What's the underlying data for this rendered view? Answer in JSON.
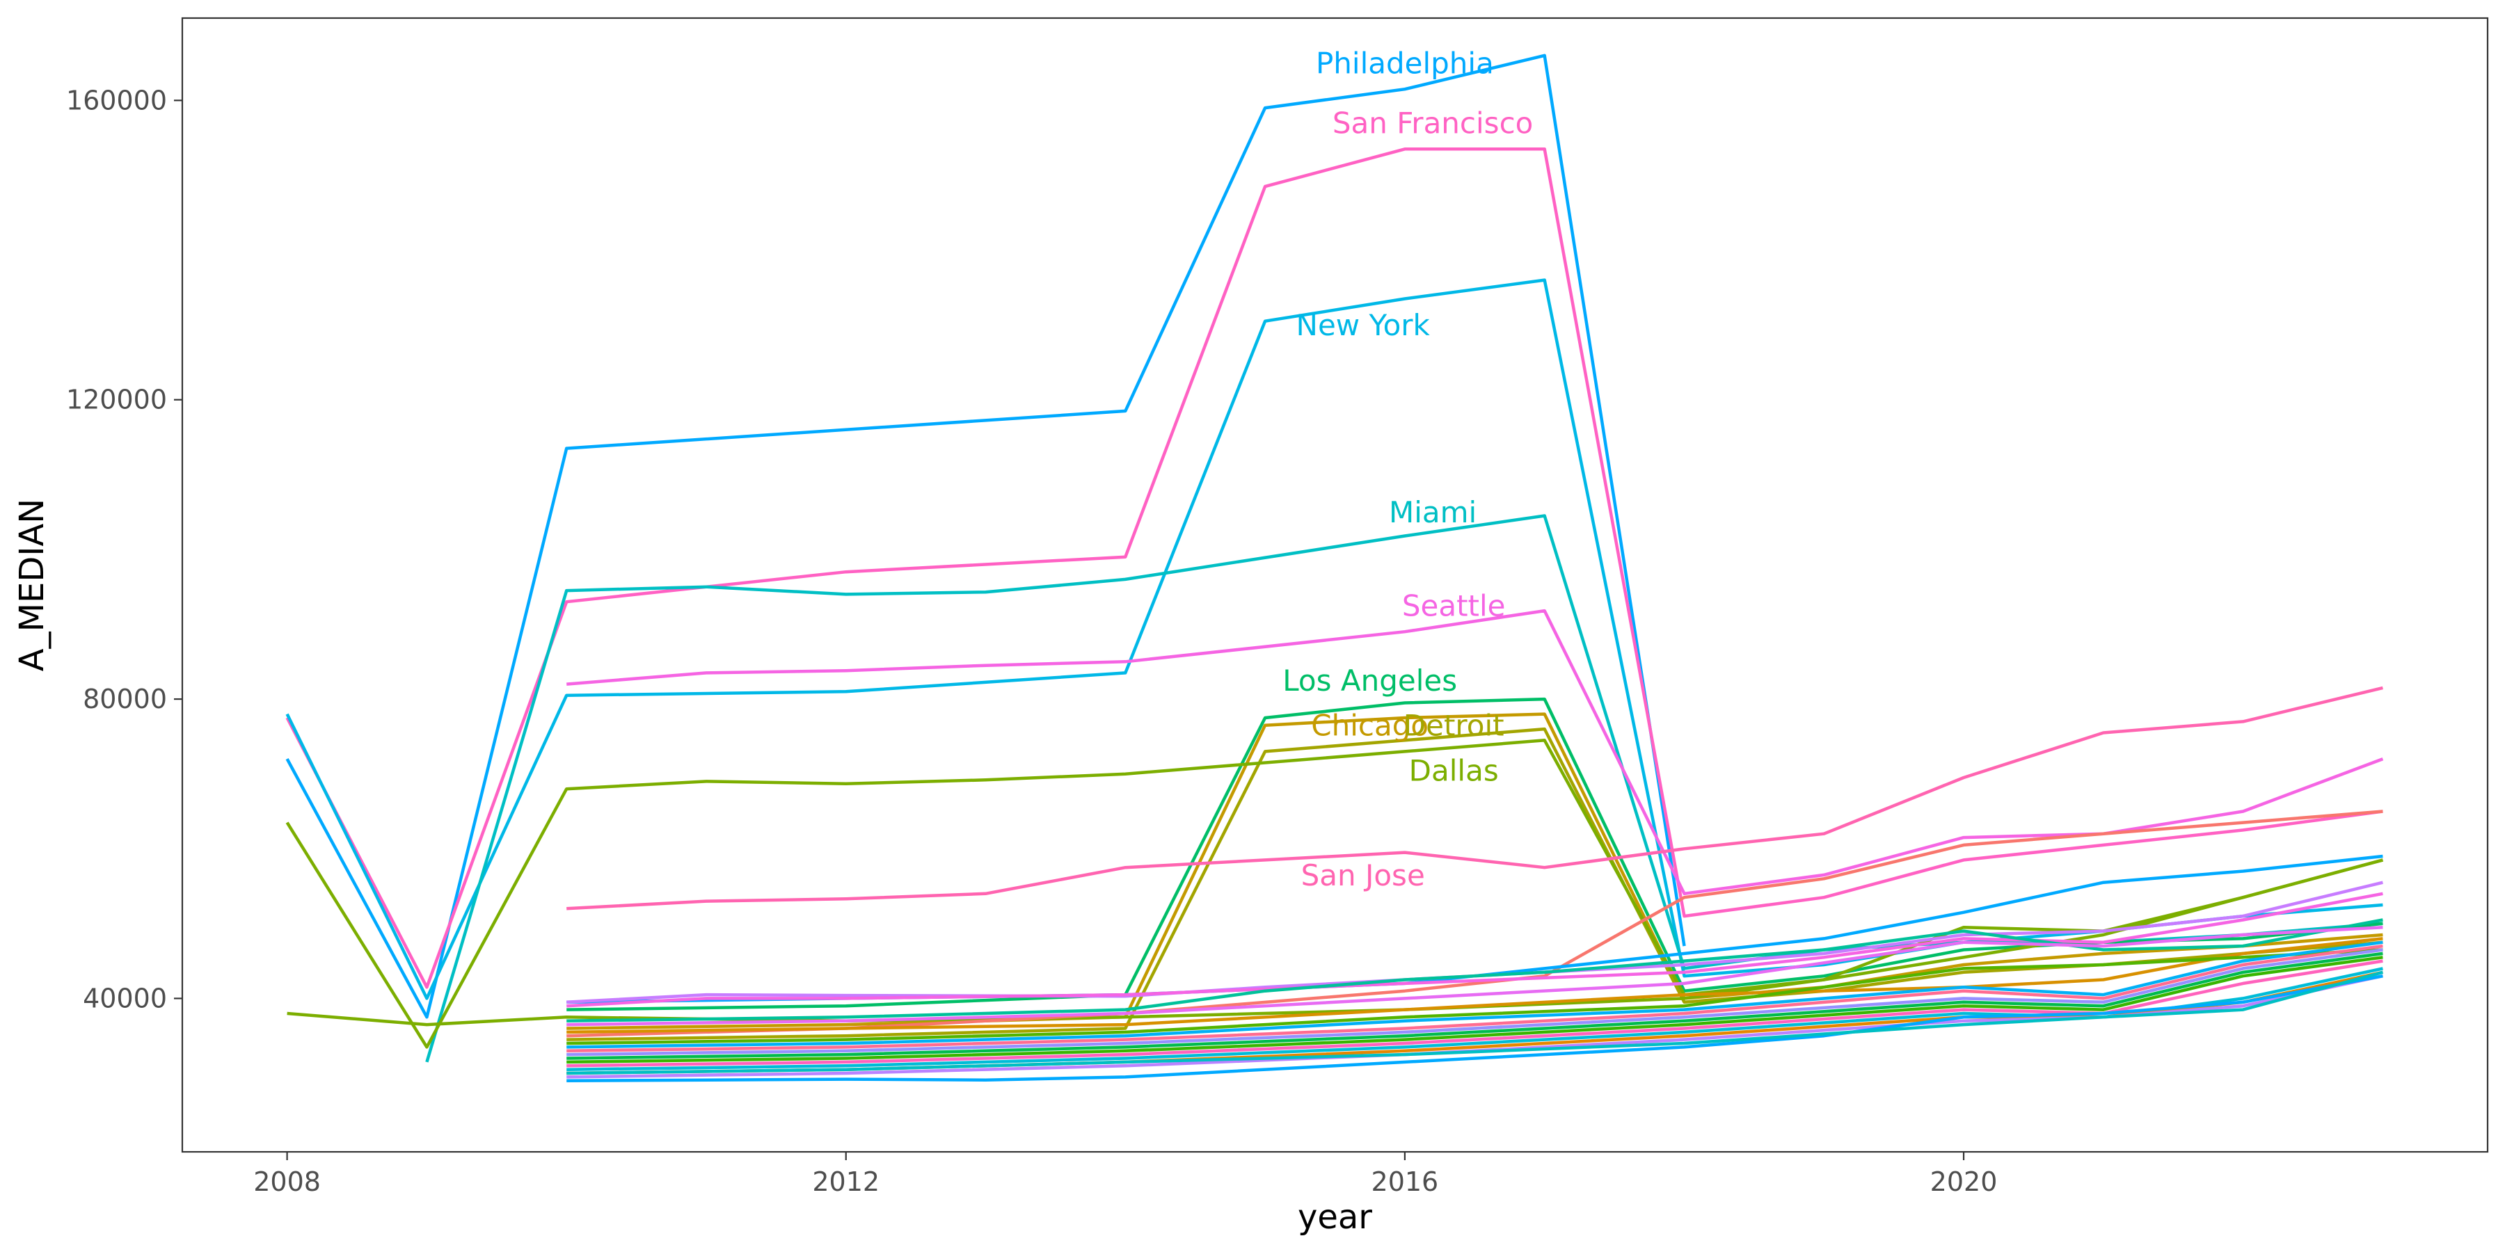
{
  "chart_data": {
    "type": "line",
    "xlabel": "year",
    "ylabel": "A_MEDIAN",
    "xlim": [
      2007.25,
      2023.75
    ],
    "ylim": [
      19500,
      171000
    ],
    "x_ticks": [
      2008,
      2012,
      2016,
      2020
    ],
    "y_ticks": [
      40000,
      80000,
      120000,
      160000
    ],
    "y_tick_labels": [
      "40000",
      "80000",
      "120000",
      "160000"
    ],
    "grid": false,
    "legend": "none",
    "series": [
      {
        "name": "Philadelphia",
        "color": "#00A9FF",
        "label_x": 2016.0,
        "label_y": 165000,
        "x": [
          2008,
          2009,
          2010,
          2014,
          2015,
          2016,
          2017,
          2018
        ],
        "y": [
          72000,
          37500,
          113500,
          118500,
          159000,
          161500,
          166000,
          47000
        ]
      },
      {
        "name": "San Francisco",
        "color": "#FF61C3",
        "label_x": 2016.2,
        "label_y": 157000,
        "x": [
          2008,
          2009,
          2010,
          2012,
          2014,
          2015,
          2016,
          2017,
          2018,
          2019,
          2020,
          2021,
          2022,
          2023
        ],
        "y": [
          77500,
          41500,
          93000,
          97000,
          99000,
          148500,
          153500,
          153500,
          51000,
          53500,
          58500,
          60500,
          62500,
          65000
        ]
      },
      {
        "name": "New York",
        "color": "#00B8E7",
        "label_x": 2015.7,
        "label_y": 130000,
        "x": [
          2008,
          2009,
          2010,
          2012,
          2014,
          2015,
          2016,
          2017,
          2018,
          2019,
          2020,
          2021,
          2022,
          2023
        ],
        "y": [
          78000,
          40000,
          80500,
          81000,
          83500,
          130500,
          133500,
          136000,
          43000,
          44500,
          47500,
          49000,
          51000,
          52500
        ]
      },
      {
        "name": "Miami",
        "color": "#00BFC4",
        "label_x": 2016.2,
        "label_y": 105000,
        "x": [
          2009,
          2010,
          2011,
          2012,
          2013,
          2014,
          2016,
          2017,
          2018,
          2019,
          2020,
          2021,
          2022,
          2023
        ],
        "y": [
          31500,
          94500,
          95000,
          94000,
          94300,
          96000,
          101800,
          104500,
          44000,
          46500,
          47500,
          47500,
          48500,
          50000
        ]
      },
      {
        "name": "Seattle",
        "color": "#F564E3",
        "label_x": 2016.35,
        "label_y": 92500,
        "x": [
          2010,
          2011,
          2012,
          2013,
          2014,
          2016,
          2017,
          2018,
          2019,
          2020,
          2021,
          2022,
          2023
        ],
        "y": [
          82000,
          83500,
          83800,
          84500,
          85000,
          89000,
          91800,
          54000,
          56500,
          61500,
          62000,
          65000,
          72000
        ]
      },
      {
        "name": "Los Angeles",
        "color": "#00BE67",
        "label_x": 2015.75,
        "label_y": 82500,
        "x": [
          2010,
          2012,
          2014,
          2015,
          2016,
          2017,
          2018,
          2019,
          2020,
          2021,
          2022,
          2023
        ],
        "y": [
          38500,
          39000,
          40500,
          77500,
          79500,
          80000,
          41000,
          43000,
          46500,
          47500,
          48000,
          50000
        ]
      },
      {
        "name": "Chicago",
        "color": "#C49A00",
        "label_x": 2015.75,
        "label_y": 76500,
        "x": [
          2010,
          2012,
          2014,
          2015,
          2016,
          2017,
          2018,
          2019,
          2020,
          2021,
          2022,
          2023
        ],
        "y": [
          36000,
          36500,
          37500,
          76500,
          77500,
          78000,
          40000,
          41500,
          44500,
          46000,
          47000,
          48500
        ]
      },
      {
        "name": "Detroit",
        "color": "#A3A500",
        "label_x": 2016.35,
        "label_y": 76500,
        "x": [
          2010,
          2012,
          2014,
          2015,
          2016,
          2017,
          2018,
          2019,
          2020,
          2021,
          2022,
          2023
        ],
        "y": [
          34500,
          35000,
          36000,
          73000,
          74500,
          76000,
          39500,
          41000,
          43500,
          44500,
          46000,
          47500
        ]
      },
      {
        "name": "Dallas",
        "color": "#7CAE00",
        "label_x": 2016.35,
        "label_y": 70500,
        "x": [
          2008,
          2009,
          2010,
          2011,
          2012,
          2013,
          2014,
          2016,
          2017,
          2018,
          2019,
          2020,
          2021,
          2022,
          2023
        ],
        "y": [
          63500,
          33500,
          68000,
          69000,
          68700,
          69200,
          70000,
          73000,
          74500,
          40500,
          42500,
          45500,
          48500,
          53500,
          58500
        ]
      },
      {
        "name": "San Jose",
        "color": "#FF64B0",
        "label_x": 2015.7,
        "label_y": 56500,
        "x": [
          2010,
          2011,
          2012,
          2013,
          2014,
          2015,
          2016,
          2017,
          2018,
          2019,
          2020,
          2021,
          2022,
          2023
        ],
        "y": [
          52000,
          53000,
          53300,
          54000,
          57500,
          58500,
          59500,
          57500,
          60000,
          62000,
          69500,
          75500,
          77000,
          81500
        ]
      },
      {
        "color": "#7CAE00",
        "x": [
          2008,
          2009,
          2010,
          2012,
          2014,
          2016,
          2018,
          2019,
          2020,
          2021,
          2022,
          2023
        ],
        "y": [
          38000,
          36500,
          37500,
          37000,
          37500,
          38500,
          40000,
          42500,
          49500,
          49000,
          53500,
          58500
        ]
      },
      {
        "color": "#F8766D",
        "x": [
          2010,
          2012,
          2014,
          2016,
          2017,
          2018,
          2019,
          2020,
          2021,
          2022,
          2023
        ],
        "y": [
          35000,
          36000,
          38000,
          41000,
          43000,
          53500,
          56000,
          60500,
          62000,
          63500,
          65000
        ]
      },
      {
        "color": "#00A9FF",
        "x": [
          2010,
          2012,
          2014,
          2016,
          2018,
          2019,
          2020,
          2021,
          2022,
          2023
        ],
        "y": [
          39500,
          40000,
          40500,
          42000,
          46000,
          48000,
          51500,
          55500,
          57000,
          59000
        ]
      },
      {
        "color": "#C77CFF",
        "x": [
          2010,
          2011,
          2012,
          2014,
          2015,
          2016,
          2017,
          2018,
          2019,
          2020,
          2021,
          2022,
          2023
        ],
        "y": [
          39500,
          40500,
          40400,
          40300,
          41500,
          42500,
          43500,
          44500,
          46000,
          48500,
          49000,
          51000,
          55500
        ]
      },
      {
        "color": "#F564E3",
        "x": [
          2010,
          2011,
          2012,
          2014,
          2016,
          2018,
          2019,
          2020,
          2021,
          2022,
          2023
        ],
        "y": [
          39000,
          40000,
          40000,
          40500,
          42000,
          43500,
          45500,
          48000,
          47500,
          50500,
          54000
        ]
      },
      {
        "color": "#00C19A",
        "x": [
          2010,
          2012,
          2014,
          2015,
          2016,
          2017,
          2018,
          2019,
          2020,
          2021,
          2022,
          2023
        ],
        "y": [
          37000,
          37500,
          38500,
          41000,
          42500,
          43500,
          45000,
          46500,
          49000,
          46500,
          47000,
          50500
        ]
      },
      {
        "color": "#E76BF3",
        "x": [
          2010,
          2012,
          2014,
          2016,
          2018,
          2020,
          2021,
          2022,
          2023
        ],
        "y": [
          36500,
          37000,
          38000,
          40000,
          42000,
          47500,
          47000,
          48500,
          49500
        ]
      },
      {
        "color": "#D89000",
        "x": [
          2010,
          2012,
          2014,
          2016,
          2018,
          2020,
          2021,
          2022,
          2023
        ],
        "y": [
          35500,
          36000,
          36500,
          38500,
          40500,
          41500,
          42500,
          46000,
          48000
        ]
      },
      {
        "color": "#53B400",
        "x": [
          2010,
          2012,
          2014,
          2016,
          2018,
          2020,
          2021,
          2022,
          2023
        ],
        "y": [
          34000,
          34500,
          35500,
          37500,
          39000,
          44000,
          44500,
          45500,
          46500
        ]
      },
      {
        "color": "#00B0F6",
        "x": [
          2010,
          2012,
          2014,
          2016,
          2018,
          2020,
          2021,
          2022,
          2023
        ],
        "y": [
          33500,
          34000,
          35000,
          37000,
          38500,
          41500,
          40500,
          45000,
          47500
        ]
      },
      {
        "color": "#FF6C91",
        "x": [
          2010,
          2012,
          2014,
          2016,
          2018,
          2020,
          2021,
          2022,
          2023
        ],
        "y": [
          33000,
          33500,
          34500,
          36000,
          38000,
          41000,
          40000,
          44500,
          47000
        ]
      },
      {
        "color": "#9590FF",
        "x": [
          2010,
          2012,
          2014,
          2016,
          2018,
          2020,
          2021,
          2022,
          2023
        ],
        "y": [
          32500,
          33000,
          34000,
          35500,
          37500,
          40000,
          39500,
          44000,
          46500
        ]
      },
      {
        "color": "#00BB4E",
        "x": [
          2010,
          2012,
          2014,
          2016,
          2018,
          2020,
          2021,
          2022,
          2023
        ],
        "y": [
          32000,
          32500,
          33500,
          35000,
          37000,
          39500,
          39000,
          43500,
          46000
        ]
      },
      {
        "color": "#39B600",
        "x": [
          2010,
          2012,
          2014,
          2016,
          2018,
          2020,
          2021,
          2022,
          2023
        ],
        "y": [
          31500,
          32000,
          33000,
          34500,
          36500,
          39000,
          38500,
          43000,
          45500
        ]
      },
      {
        "color": "#FF62BC",
        "x": [
          2010,
          2012,
          2014,
          2016,
          2018,
          2020,
          2021,
          2022,
          2023
        ],
        "y": [
          31000,
          31500,
          32500,
          34000,
          36000,
          38500,
          38000,
          42000,
          45000
        ]
      },
      {
        "color": "#00BCD8",
        "x": [
          2010,
          2012,
          2014,
          2016,
          2018,
          2020,
          2021,
          2022,
          2023
        ],
        "y": [
          30500,
          31000,
          32000,
          33500,
          35500,
          38000,
          37500,
          40000,
          44000
        ]
      },
      {
        "color": "#E58700",
        "x": [
          2010,
          2012,
          2014,
          2016,
          2018,
          2020,
          2021,
          2022,
          2023
        ],
        "y": [
          30000,
          30500,
          31500,
          33000,
          35000,
          37500,
          37500,
          39500,
          43500
        ]
      },
      {
        "color": "#B983FF",
        "x": [
          2010,
          2012,
          2014,
          2016,
          2018,
          2020,
          2021,
          2022,
          2023
        ],
        "y": [
          29500,
          30000,
          31000,
          32500,
          34500,
          37000,
          37500,
          39000,
          43000
        ]
      },
      {
        "color": "#00A9FF",
        "x": [
          2010,
          2012,
          2013,
          2014,
          2016,
          2018,
          2019,
          2020,
          2021,
          2022,
          2023
        ],
        "y": [
          29000,
          29200,
          29100,
          29500,
          31500,
          33500,
          35000,
          37500,
          38000,
          39500,
          43000
        ]
      },
      {
        "color": "#00BFC4",
        "x": [
          2010,
          2012,
          2014,
          2016,
          2018,
          2020,
          2021,
          2022,
          2023
        ],
        "y": [
          30000,
          30500,
          31500,
          32500,
          34000,
          36500,
          37500,
          38500,
          43500
        ]
      }
    ]
  }
}
